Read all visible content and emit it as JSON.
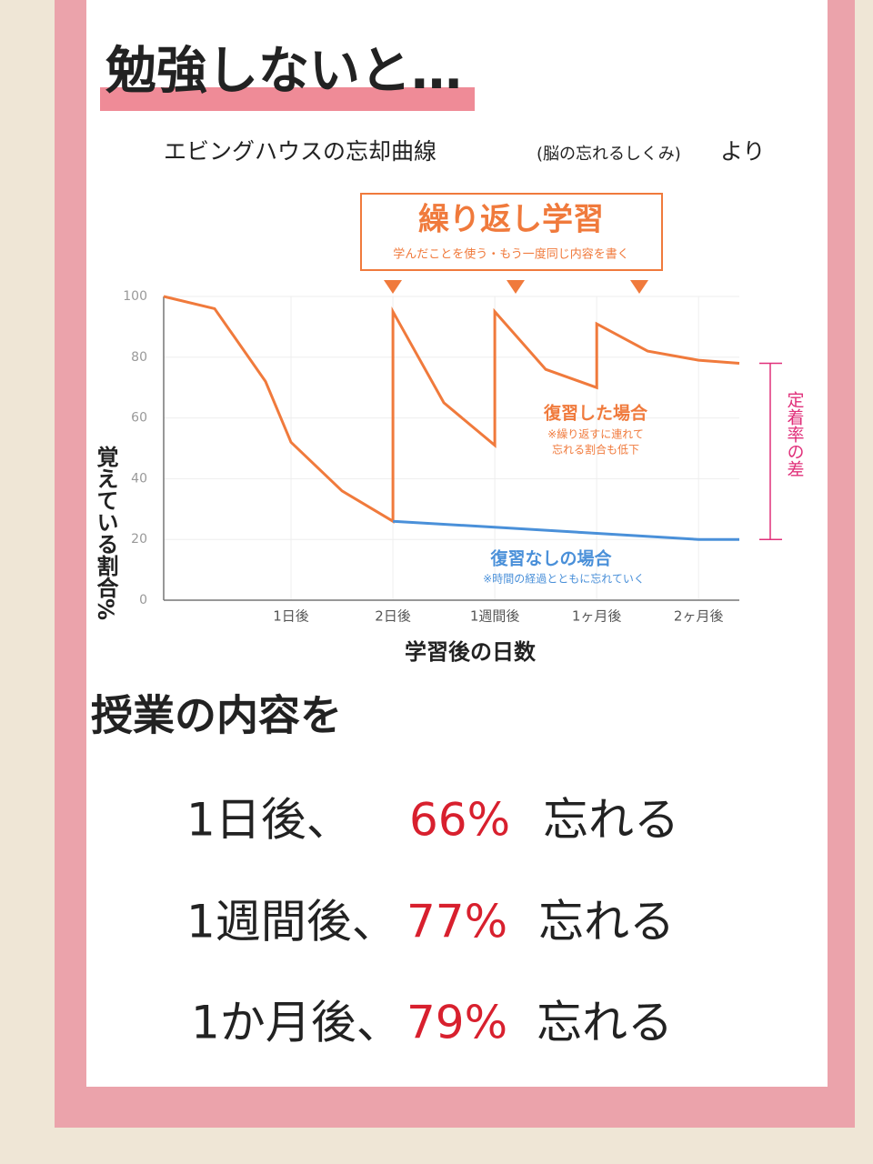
{
  "poster": {
    "title": "勉強しないと…",
    "subtitle": [
      "エビングハウスの忘却曲線",
      "(脳の忘れるしくみ)",
      "より"
    ],
    "heading": "授業の内容を",
    "rows": [
      [
        "1日後、",
        "66%",
        "忘れる"
      ],
      [
        "1週間後、",
        "77%",
        "忘れる"
      ],
      [
        "1か月後、",
        "79%",
        "忘れる"
      ]
    ]
  },
  "chart_data": {
    "type": "line",
    "box_title": "繰り返し学習",
    "box_subtitle": "学んだことを使う・もう一度同じ内容を書く",
    "y_label": "覚えている割合%",
    "x_label": "学習後の日数",
    "gap_label": "定着率の差",
    "xlim": [
      -0.25,
      5.4
    ],
    "xticks": [
      {
        "value": 1,
        "label": "1日後"
      },
      {
        "value": 2,
        "label": "2日後"
      },
      {
        "value": 3,
        "label": "1週間後"
      },
      {
        "value": 4,
        "label": "1ヶ月後"
      },
      {
        "value": 5,
        "label": "2ヶ月後"
      }
    ],
    "ylim": [
      0,
      100
    ],
    "yticks": [
      0,
      20,
      40,
      60,
      80,
      100
    ],
    "grid": true,
    "series": [
      {
        "name": "復習した場合",
        "color": "#f07a3c",
        "note": [
          "※繰り返すに連れて",
          "忘れる割合も低下"
        ],
        "x": [
          -0.25,
          0.25,
          0.75,
          1,
          1.5,
          2,
          2,
          2.5,
          3,
          3,
          3.5,
          4,
          4,
          4.5,
          5,
          5.4
        ],
        "values": [
          100,
          96,
          72,
          52,
          36,
          26,
          95,
          65,
          51,
          95,
          76,
          70,
          91,
          82,
          79,
          78
        ]
      },
      {
        "name": "復習なしの場合",
        "color": "#4a90d9",
        "note": [
          "※時間の経過とともに忘れていく"
        ],
        "x": [
          2,
          3,
          4,
          5,
          5.4
        ],
        "values": [
          26,
          24,
          22,
          20,
          20
        ]
      }
    ]
  }
}
